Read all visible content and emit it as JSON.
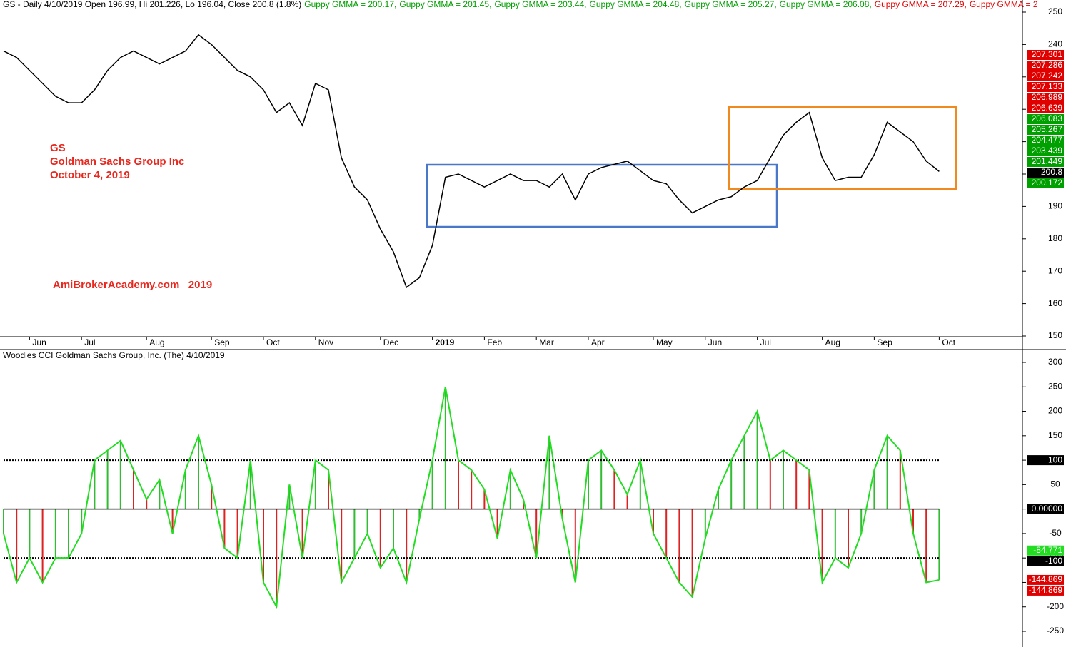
{
  "header": {
    "prefix": "GS - Daily 4/10/2019 Open 196.99, Hi 201.226, Lo 196.04, Close 200.8 (1.8%)",
    "gmma": [
      {
        "text": "Guppy GMMA = 200.17,",
        "color": "#00a000"
      },
      {
        "text": "Guppy GMMA = 201.45,",
        "color": "#00a000"
      },
      {
        "text": "Guppy GMMA = 203.44,",
        "color": "#00a000"
      },
      {
        "text": "Guppy GMMA = 204.48,",
        "color": "#00a000"
      },
      {
        "text": "Guppy GMMA = 205.27,",
        "color": "#00a000"
      },
      {
        "text": "Guppy GMMA = 206.08,",
        "color": "#00a000"
      },
      {
        "text": "Guppy GMMA = 207.29,",
        "color": "#e00000"
      },
      {
        "text": "Guppy GMMA = 2",
        "color": "#e00000"
      }
    ]
  },
  "chart_data": [
    {
      "type": "line",
      "annotations": [
        "GS",
        "Goldman Sachs Group Inc",
        "October 4, 2019",
        "AmiBrokerAcademy.com   2019"
      ],
      "annotation_color": "#e8281e",
      "categories": [
        null,
        null,
        "Jun",
        null,
        null,
        null,
        "Jul",
        null,
        null,
        null,
        null,
        "Aug",
        null,
        null,
        null,
        null,
        "Sep",
        null,
        null,
        null,
        "Oct",
        null,
        null,
        null,
        "Nov",
        null,
        null,
        null,
        null,
        "Dec",
        null,
        null,
        null,
        "2019",
        null,
        null,
        null,
        "Feb",
        null,
        null,
        null,
        "Mar",
        null,
        null,
        null,
        "Apr",
        null,
        null,
        null,
        null,
        "May",
        null,
        null,
        null,
        "Jun",
        null,
        null,
        null,
        "Jul",
        null,
        null,
        null,
        null,
        "Aug",
        null,
        null,
        null,
        "Sep",
        null,
        null,
        null,
        null,
        "Oct"
      ],
      "values": [
        238,
        236,
        232,
        228,
        224,
        222,
        222,
        226,
        232,
        236,
        238,
        236,
        234,
        236,
        238,
        243,
        240,
        236,
        232,
        230,
        226,
        219,
        222,
        215,
        228,
        226,
        205,
        196,
        192,
        183,
        176,
        165,
        168,
        178,
        199,
        200,
        198,
        196,
        198,
        200,
        198,
        198,
        196,
        200,
        192,
        200,
        202,
        203,
        204,
        201,
        198,
        197,
        192,
        188,
        190,
        192,
        193,
        196,
        198,
        205,
        212,
        216,
        219,
        205,
        198,
        199,
        199,
        206,
        216,
        213,
        210,
        204,
        200.8
      ],
      "color": "#000000",
      "ylim": [
        150,
        250
      ],
      "yticks": [
        150,
        160,
        170,
        180,
        190,
        200,
        210,
        220,
        230,
        240,
        250
      ],
      "grid": false,
      "price_labels": [
        {
          "value": 207.301,
          "color": "#e00000"
        },
        {
          "value": 207.286,
          "color": "#e00000"
        },
        {
          "value": 207.242,
          "color": "#e00000"
        },
        {
          "value": 207.133,
          "color": "#e00000"
        },
        {
          "value": 206.989,
          "color": "#e00000"
        },
        {
          "value": 206.639,
          "color": "#e00000"
        },
        {
          "value": 206.083,
          "color": "#00a000"
        },
        {
          "value": 205.267,
          "color": "#00a000"
        },
        {
          "value": 204.477,
          "color": "#00a000"
        },
        {
          "value": 203.439,
          "color": "#00a000"
        },
        {
          "value": 201.449,
          "color": "#00a000"
        },
        {
          "value": 200.8,
          "color": "#000000"
        },
        {
          "value": 200.172,
          "color": "#00a000"
        }
      ]
    },
    {
      "type": "cci",
      "title": "Woodies CCI  Goldman Sachs Group, Inc. (The) 4/10/2019",
      "values": [
        -50,
        -150,
        -100,
        -150,
        -100,
        -100,
        -50,
        100,
        120,
        140,
        80,
        20,
        60,
        -50,
        80,
        150,
        50,
        -80,
        -100,
        100,
        -150,
        -200,
        50,
        -100,
        100,
        80,
        -150,
        -100,
        -50,
        -120,
        -80,
        -150,
        -20,
        100,
        250,
        100,
        80,
        40,
        -60,
        80,
        20,
        -100,
        150,
        -20,
        -150,
        100,
        120,
        80,
        30,
        100,
        -50,
        -100,
        -150,
        -180,
        -60,
        40,
        100,
        150,
        200,
        100,
        120,
        100,
        80,
        -150,
        -100,
        -120,
        -50,
        80,
        150,
        120,
        -50,
        -150,
        -144.869
      ],
      "color": "#22dd22",
      "up_color": "#33bb33",
      "down_color": "#dd2222",
      "ylim": [
        -250,
        300
      ],
      "yticks": [
        -250,
        -200,
        -150,
        -100,
        -50,
        0,
        50,
        100,
        150,
        200,
        250,
        300
      ],
      "levels": [
        100,
        0,
        -100
      ],
      "level_labels": [
        {
          "value": 100,
          "color": "#000000"
        },
        {
          "value": 0,
          "label": "0.00000",
          "color": "#000000"
        },
        {
          "value": -84.771,
          "color": "#22dd22"
        },
        {
          "value": -100,
          "color": "#000000"
        },
        {
          "value": -144.869,
          "color": "#e00000"
        },
        {
          "value": -144.869,
          "color": "#e00000"
        }
      ]
    }
  ]
}
